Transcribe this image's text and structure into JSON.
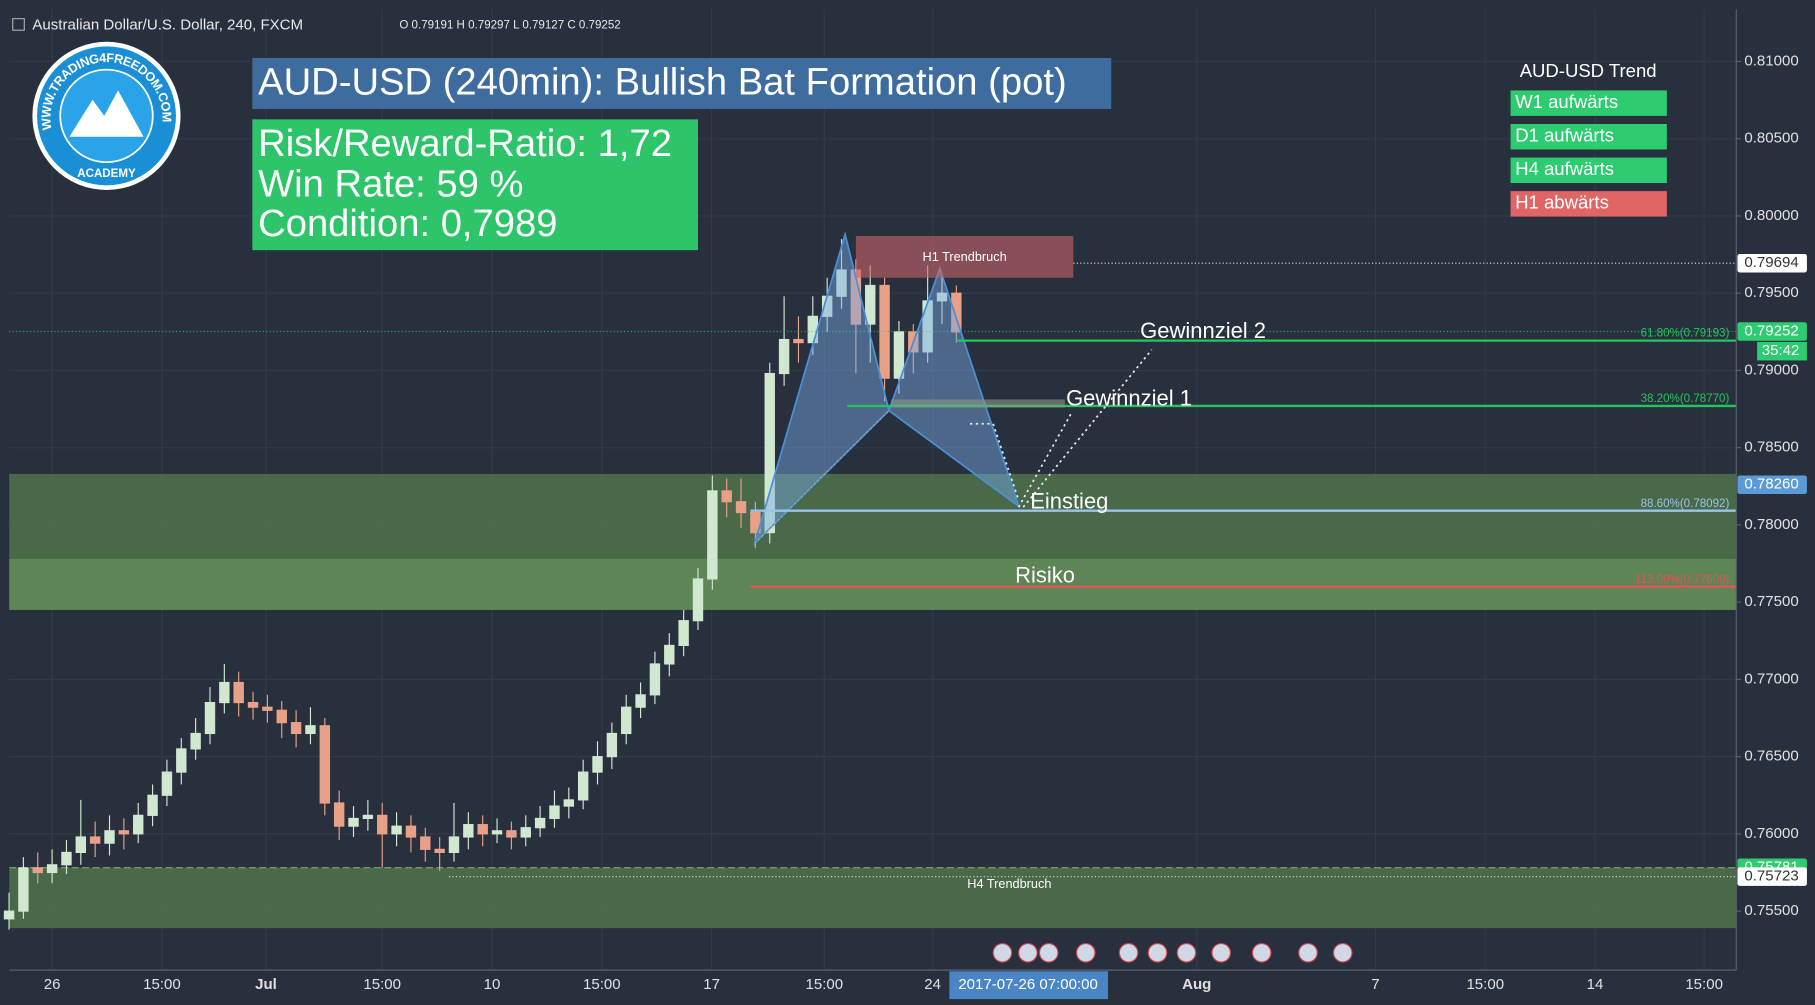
{
  "header": {
    "symbol": "Australian Dollar/U.S. Dollar, 240, FXCM",
    "ohlc": "O 0.79191 H 0.79297 L 0.79127 C 0.79252"
  },
  "logo": {
    "ring_text": "WWW.TRADING4FREEDOM.COM",
    "academy": "ACADEMY"
  },
  "info": {
    "title": "AUD-USD (240min): Bullish Bat Formation (pot)",
    "lines": [
      "Risk/Reward-Ratio: 1,72",
      "Win Rate: 59 %",
      "Condition: 0,7989"
    ]
  },
  "trend": {
    "title": "AUD-USD Trend",
    "rows": [
      {
        "label": "W1 aufwärts",
        "color": "#2ecc71"
      },
      {
        "label": "D1 aufwärts",
        "color": "#2ecc71"
      },
      {
        "label": "H4 aufwärts",
        "color": "#2ecc71"
      },
      {
        "label": "H1 abwärts",
        "color": "#e06666"
      }
    ]
  },
  "chart_data": {
    "type": "candlestick",
    "x": [
      -6,
      -4,
      -2,
      0,
      2,
      4,
      6,
      8,
      10,
      12,
      14,
      16,
      18,
      20,
      22,
      24,
      26,
      28,
      30,
      32,
      34,
      36,
      38,
      40,
      42,
      44,
      46,
      48,
      50,
      52,
      54,
      56,
      58,
      60,
      62,
      64,
      66,
      68,
      70,
      72,
      74,
      76,
      78,
      80,
      82,
      84,
      86,
      88,
      90,
      92,
      94,
      96,
      98,
      100,
      102,
      104,
      106,
      108,
      110,
      112,
      114,
      116,
      118,
      120,
      122,
      124,
      126
    ],
    "open": [
      0.7545,
      0.755,
      0.7578,
      0.7575,
      0.758,
      0.7588,
      0.7598,
      0.7594,
      0.7602,
      0.76,
      0.7612,
      0.7625,
      0.764,
      0.7655,
      0.7665,
      0.7685,
      0.7698,
      0.7685,
      0.7682,
      0.768,
      0.7672,
      0.7665,
      0.767,
      0.762,
      0.7605,
      0.761,
      0.7612,
      0.76,
      0.7605,
      0.7598,
      0.759,
      0.7588,
      0.7598,
      0.7606,
      0.76,
      0.7602,
      0.7598,
      0.7604,
      0.761,
      0.7618,
      0.7622,
      0.764,
      0.765,
      0.7665,
      0.7682,
      0.769,
      0.771,
      0.7722,
      0.7738,
      0.7765,
      0.7822,
      0.7815,
      0.7808,
      0.7795,
      0.7898,
      0.792,
      0.7918,
      0.7935,
      0.7948,
      0.7965,
      0.793,
      0.7955,
      0.7895,
      0.7925,
      0.7912,
      0.7945,
      0.795
    ],
    "high": [
      0.7562,
      0.7585,
      0.7588,
      0.759,
      0.7596,
      0.7622,
      0.7608,
      0.7612,
      0.761,
      0.762,
      0.7632,
      0.7648,
      0.7662,
      0.7675,
      0.7695,
      0.771,
      0.7705,
      0.7692,
      0.769,
      0.7686,
      0.768,
      0.7682,
      0.7675,
      0.7628,
      0.7618,
      0.7622,
      0.762,
      0.7614,
      0.7612,
      0.7604,
      0.7598,
      0.762,
      0.7614,
      0.7612,
      0.761,
      0.7608,
      0.7612,
      0.7618,
      0.7628,
      0.763,
      0.7648,
      0.766,
      0.7672,
      0.769,
      0.7698,
      0.7718,
      0.773,
      0.7745,
      0.7772,
      0.7832,
      0.783,
      0.783,
      0.7815,
      0.7905,
      0.7948,
      0.7935,
      0.7948,
      0.796,
      0.7985,
      0.7972,
      0.7968,
      0.796,
      0.7932,
      0.793,
      0.7968,
      0.7962,
      0.7955
    ],
    "low": [
      0.7538,
      0.7545,
      0.7568,
      0.7568,
      0.7574,
      0.758,
      0.7585,
      0.7586,
      0.759,
      0.7594,
      0.7605,
      0.7618,
      0.7632,
      0.7648,
      0.7658,
      0.7678,
      0.7676,
      0.7674,
      0.7672,
      0.7662,
      0.7656,
      0.7658,
      0.7612,
      0.7596,
      0.7598,
      0.7602,
      0.7578,
      0.7592,
      0.7588,
      0.7582,
      0.7576,
      0.7582,
      0.759,
      0.7592,
      0.7594,
      0.759,
      0.7592,
      0.7598,
      0.7604,
      0.761,
      0.7616,
      0.7632,
      0.7642,
      0.7658,
      0.7675,
      0.7684,
      0.7702,
      0.7715,
      0.7732,
      0.7758,
      0.7805,
      0.7798,
      0.7785,
      0.7788,
      0.789,
      0.7905,
      0.791,
      0.7925,
      0.794,
      0.7898,
      0.7905,
      0.788,
      0.7885,
      0.7898,
      0.7905,
      0.793,
      0.7918
    ],
    "close": [
      0.755,
      0.7578,
      0.7575,
      0.758,
      0.7588,
      0.7598,
      0.7594,
      0.7602,
      0.76,
      0.7612,
      0.7625,
      0.764,
      0.7655,
      0.7665,
      0.7685,
      0.7698,
      0.7685,
      0.7682,
      0.768,
      0.7672,
      0.7665,
      0.767,
      0.762,
      0.7605,
      0.761,
      0.7612,
      0.76,
      0.7605,
      0.7598,
      0.759,
      0.7588,
      0.7598,
      0.7606,
      0.76,
      0.7602,
      0.7598,
      0.7604,
      0.761,
      0.7618,
      0.7622,
      0.764,
      0.765,
      0.7665,
      0.7682,
      0.769,
      0.771,
      0.7722,
      0.7738,
      0.7765,
      0.7822,
      0.7815,
      0.7808,
      0.7795,
      0.7898,
      0.792,
      0.7918,
      0.7935,
      0.7948,
      0.7965,
      0.793,
      0.7955,
      0.7895,
      0.7925,
      0.7912,
      0.7945,
      0.795,
      0.7925
    ],
    "up_color": "#cfe8cf",
    "down_color": "#e8a087",
    "xlim": [
      -5.97,
      234.68
    ],
    "ylim": [
      0.75118,
      0.81337
    ],
    "xticks": [
      {
        "value": 0,
        "label": "26"
      },
      {
        "value": 15.3,
        "label": "15:00"
      },
      {
        "value": 29.8,
        "label": "Jul"
      },
      {
        "value": 46,
        "label": "15:00"
      },
      {
        "value": 61.3,
        "label": "10"
      },
      {
        "value": 76.6,
        "label": "15:00"
      },
      {
        "value": 91.9,
        "label": "17"
      },
      {
        "value": 107.6,
        "label": "15:00"
      },
      {
        "value": 122.7,
        "label": "24"
      },
      {
        "value": 159.5,
        "label": "Aug"
      },
      {
        "value": 184.4,
        "label": "7"
      },
      {
        "value": 199.7,
        "label": "15:00"
      },
      {
        "value": 215,
        "label": "14"
      },
      {
        "value": 230.2,
        "label": "15:00"
      }
    ],
    "yticks": [
      {
        "value": 0.755,
        "label": "0.75500"
      },
      {
        "value": 0.76,
        "label": "0.76000"
      },
      {
        "value": 0.765,
        "label": "0.76500"
      },
      {
        "value": 0.77,
        "label": "0.77000"
      },
      {
        "value": 0.775,
        "label": "0.77500"
      },
      {
        "value": 0.78,
        "label": "0.78000"
      },
      {
        "value": 0.785,
        "label": "0.78500"
      },
      {
        "value": 0.79,
        "label": "0.79000"
      },
      {
        "value": 0.795,
        "label": "0.79500"
      },
      {
        "value": 0.8,
        "label": "0.80000"
      },
      {
        "value": 0.805,
        "label": "0.80500"
      },
      {
        "value": 0.81,
        "label": "0.81000"
      }
    ],
    "grid": true,
    "zones": [
      {
        "y": [
          0.7745,
          0.7833
        ],
        "color": "#4c6d4a"
      },
      {
        "y": [
          0.7745,
          0.7778
        ],
        "color": "#5e8757"
      },
      {
        "y": [
          0.7539,
          0.75781
        ],
        "color": "#4c6d4a"
      }
    ],
    "trend_breaks": [
      {
        "label": "H1 Trendbruch",
        "value": 0.79694,
        "zone": [
          0.796,
          0.7987
        ],
        "zone_x": [
          112,
          142.3
        ]
      },
      {
        "label": "H4 Trendbruch",
        "value": 0.75723,
        "from": 55.3
      }
    ],
    "levels": [
      {
        "label": "61.80%(0.79193)",
        "value": 0.79193,
        "from": 126,
        "color": "#22c55e"
      },
      {
        "label": "38.20%(0.78770)",
        "value": 0.7877,
        "from": 110.8,
        "color": "#22c55e"
      },
      {
        "label": "88.60%(0.78092)",
        "value": 0.78092,
        "from": 97.3,
        "color": "#9cc3e8"
      },
      {
        "label": "113.00%(0.77600)",
        "value": 0.776,
        "from": 97.3,
        "color": "#e05555"
      }
    ],
    "pattern": {
      "x": [
        97.9,
        110.5,
        116.6,
        123.7,
        134.7
      ],
      "y": [
        0.7788,
        0.7988,
        0.7874,
        0.7966,
        0.7812
      ]
    },
    "annotations": [
      "Gewinnziel 2",
      "Gewinnziel 1",
      "Einstieg",
      "Risiko"
    ],
    "price_labels": [
      {
        "value": 0.79694,
        "label": "0.79694",
        "color": "#ffffff",
        "text_color": "#333333"
      },
      {
        "value": 0.79252,
        "label": "0.79252",
        "color": "#2ecc71",
        "text_color": "#ffffff"
      },
      {
        "value": 0.7826,
        "label": "0.78260",
        "color": "#5b9bd5",
        "text_color": "#ffffff"
      },
      {
        "value": 0.75781,
        "label": "0.75781",
        "color": "#2ecc71",
        "text_color": "#ffffff"
      },
      {
        "value": 0.75723,
        "label": "0.75723",
        "color": "#ffffff",
        "text_color": "#333333"
      }
    ],
    "countdown": "35:42",
    "crosshair": {
      "x": 136,
      "label": "2017-07-26 07:00:00"
    }
  }
}
